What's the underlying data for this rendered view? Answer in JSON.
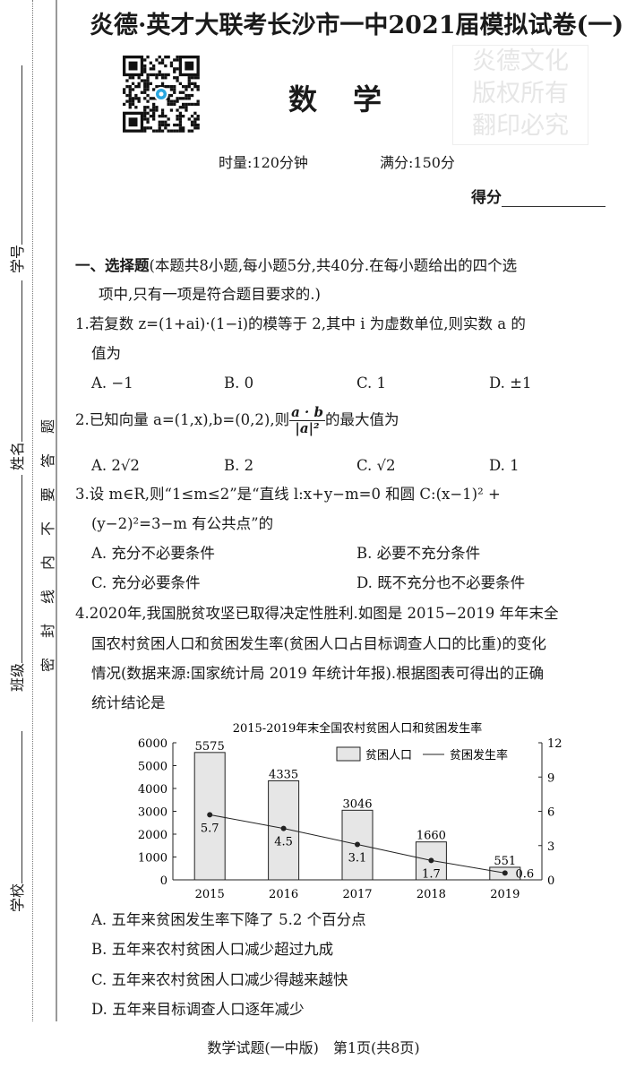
{
  "header": {
    "title": "炎德·英才大联考长沙市一中2021届模拟试卷(一)",
    "subject": "数学",
    "time": "时量:120分钟",
    "full_score": "满分:150分",
    "score_label": "得分"
  },
  "sidebar": {
    "fields": [
      "学校",
      "班级",
      "姓名",
      "学号"
    ],
    "seal_text": "密封线内不要答题"
  },
  "watermark": {
    "line1": "炎德文化",
    "line2": "版权所有",
    "line3": "翻印必究"
  },
  "section": {
    "heading": "一、选择题",
    "desc1": "(本题共8小题,每小题5分,共40分.在每小题给出的四个选",
    "desc2": "项中,只有一项是符合题目要求的.)"
  },
  "questions": [
    {
      "lines": [
        "1.若复数 z=(1+ai)·(1−i)的模等于 2,其中 i 为虚数单位,则实数 a 的",
        "值为"
      ],
      "options": [
        "A. −1",
        "B. 0",
        "C. 1",
        "D. ±1"
      ]
    },
    {
      "prefix": "2.已知向量 a=(1,x),b=(0,2),则",
      "frac_num": "a · b",
      "frac_den": "|a|²",
      "suffix": "的最大值为",
      "options": [
        "A. 2√2",
        "B. 2",
        "C. √2",
        "D. 1"
      ]
    },
    {
      "lines": [
        "3.设 m∈R,则“1≤m≤2”是“直线 l:x+y−m=0 和圆 C:(x−1)² +",
        "(y−2)²=3−m 有公共点”的"
      ],
      "options": [
        "A. 充分不必要条件",
        "B. 必要不充分条件",
        "C. 充分必要条件",
        "D. 既不充分也不必要条件"
      ]
    },
    {
      "lines": [
        "4.2020年,我国脱贫攻坚已取得决定性胜利.如图是 2015−2019 年年末全",
        "国农村贫困人口和贫困发生率(贫困人口占目标调查人口的比重)的变化",
        "情况(数据来源:国家统计局 2019 年统计年报).根据图表可得出的正确",
        "统计结论是"
      ],
      "options": [
        "A. 五年来贫困发生率下降了 5.2 个百分点",
        "B. 五年来农村贫困人口减少超过九成",
        "C. 五年来农村贫困人口减少得越来越快",
        "D. 五年来目标调查人口逐年减少"
      ]
    }
  ],
  "chart_data": {
    "type": "bar+line",
    "title": "2015-2019年末全国农村贫困人口和贫困发生率",
    "categories": [
      "2015",
      "2016",
      "2017",
      "2018",
      "2019"
    ],
    "series": [
      {
        "name": "贫困人口",
        "type": "bar",
        "axis": "left",
        "values": [
          5575,
          4335,
          3046,
          1660,
          551
        ]
      },
      {
        "name": "贫困发生率",
        "type": "line",
        "axis": "right",
        "values": [
          5.7,
          4.5,
          3.1,
          1.7,
          0.6
        ]
      }
    ],
    "left_ylim": [
      0,
      6000
    ],
    "left_ticks": [
      "0",
      "1000",
      "2000",
      "3000",
      "4000",
      "5000",
      "6000"
    ],
    "right_ylim": [
      0,
      12
    ],
    "right_ticks": [
      "0",
      "3",
      "6",
      "9",
      "12"
    ],
    "legend": "top-right",
    "grid": false,
    "bar_color": "#e6e6e6"
  },
  "footer": "数学试题(一中版)　第1页(共8页)"
}
